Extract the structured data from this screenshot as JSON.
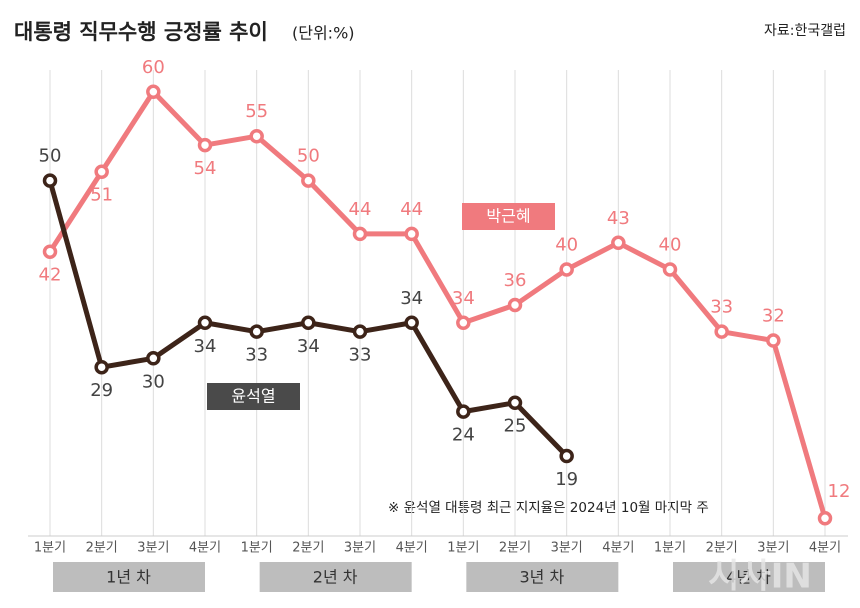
{
  "chart_data": {
    "type": "line",
    "title": "대통령 직무수행 긍정률 추이",
    "unit": "(단위:%)",
    "source": "자료:한국갤럽",
    "note": "※ 윤석열 대통령 최근 지지율은 2024년 10월 마지막 주",
    "watermark": "시사IN",
    "categories": [
      "1분기",
      "2분기",
      "3분기",
      "4분기",
      "1분기",
      "2분기",
      "3분기",
      "4분기",
      "1분기",
      "2분기",
      "3분기",
      "4분기",
      "1분기",
      "2분기",
      "3분기",
      "4분기"
    ],
    "groups": [
      "1년 차",
      "2년 차",
      "3년 차",
      "4년 차"
    ],
    "series": [
      {
        "name": "박근혜",
        "color": "#f07a7e",
        "values": [
          42,
          51,
          60,
          54,
          55,
          50,
          44,
          44,
          34,
          36,
          40,
          43,
          40,
          33,
          32,
          12
        ]
      },
      {
        "name": "윤석열",
        "color": "#3d2419",
        "values": [
          50,
          29,
          30,
          34,
          33,
          34,
          33,
          34,
          24,
          25,
          19,
          null,
          null,
          null,
          null,
          null
        ]
      }
    ],
    "ylim": [
      10,
      62
    ],
    "grid": true
  }
}
